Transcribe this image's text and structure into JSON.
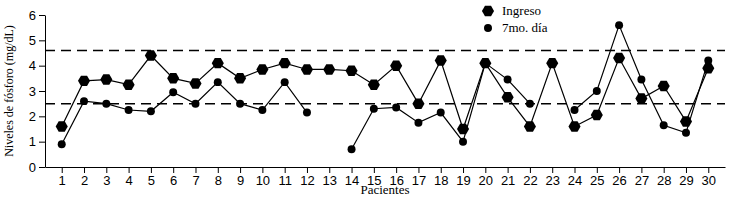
{
  "chart_data": {
    "type": "line",
    "x_label": "Pacientes",
    "y_label": "Niveles de fósforo (mg/dL)",
    "categories": [
      "1",
      "2",
      "3",
      "4",
      "5",
      "6",
      "7",
      "8",
      "9",
      "10",
      "11",
      "12",
      "13",
      "14",
      "15",
      "16",
      "17",
      "18",
      "19",
      "20",
      "21",
      "22",
      "23",
      "24",
      "25",
      "26",
      "27",
      "28",
      "29",
      "30"
    ],
    "series": [
      {
        "name": "Ingreso",
        "color": "#000000",
        "marker": "hexagon",
        "line_style": "solid",
        "values": [
          1.6,
          3.4,
          3.45,
          3.25,
          4.4,
          3.5,
          3.3,
          4.1,
          3.5,
          3.85,
          4.1,
          3.85,
          3.85,
          3.8,
          3.25,
          4.0,
          2.5,
          4.2,
          1.5,
          4.1,
          2.75,
          1.6,
          4.1,
          1.6,
          2.05,
          4.3,
          2.7,
          3.2,
          1.8,
          3.9
        ]
      },
      {
        "name": "7mo. día",
        "color": "#000000",
        "marker": "circle",
        "line_style": "solid",
        "values": [
          0.9,
          2.6,
          2.5,
          2.25,
          2.2,
          2.95,
          2.5,
          3.35,
          2.5,
          2.25,
          3.35,
          2.15,
          null,
          0.7,
          2.3,
          2.35,
          1.75,
          2.15,
          1.0,
          4.1,
          3.45,
          2.5,
          null,
          2.25,
          3.0,
          5.6,
          3.45,
          1.65,
          1.35,
          4.2
        ]
      }
    ],
    "reference_lines": [
      4.6,
      2.5
    ],
    "ylim": [
      0,
      6
    ],
    "yticks": [
      0,
      1,
      2,
      3,
      4,
      5,
      6
    ],
    "legend": "upper right",
    "grid": false
  }
}
